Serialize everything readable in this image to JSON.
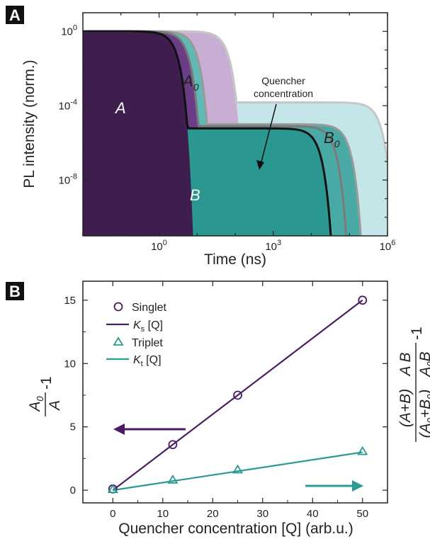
{
  "colors": {
    "singlet": "#4a1d63",
    "triplet": "#2a9a93",
    "a_fill": "#3e1d4f",
    "b_fill": "#2b9791",
    "a0_fill": "#c9aed3",
    "b0_fill": "#c5e6e9",
    "grey_curve": "#c7c7c7",
    "mid_grey": "#7a7a7a"
  },
  "panel_a": {
    "badge": "A",
    "xlabel": "Time (ns)",
    "ylabel": "PL intensity (norm.)",
    "label_A": "A",
    "label_A0_base": "A",
    "label_A0_sub": "0",
    "label_B": "B",
    "label_B0_base": "B",
    "label_B0_sub": "0",
    "annotation_line1": "Quencher",
    "annotation_line2": "concentration"
  },
  "panel_b": {
    "badge": "B",
    "xlabel": "Quencher concentration [Q] (arb.u.)",
    "left_ylabel_base": "A",
    "left_ylabel_sub": "0",
    "left_ylabel_den": "A",
    "left_ylabel_tail": "-1",
    "right_ylabel_top": "(A+B)",
    "right_ylabel_topright": "A B",
    "right_ylabel_bottom_left": "(A",
    "right_ylabel_bottom_right": "B",
    "right_ylabel_tail": "-1",
    "legend": {
      "singlet": "Singlet",
      "ks": "K",
      "ks_sub": "s",
      "ks_tail": " [Q]",
      "triplet": "Triplet",
      "kt": "K",
      "kt_sub": "t",
      "kt_tail": " [Q]"
    }
  },
  "chart_data": [
    {
      "type": "area",
      "panel": "A",
      "xlabel": "Time (ns)",
      "ylabel": "PL intensity (norm.)",
      "xscale": "log",
      "yscale": "log",
      "x_tick_labels": [
        "10^0",
        "10^3",
        "10^6"
      ],
      "y_tick_labels": [
        "10^0",
        "10^-4",
        "10^-8"
      ],
      "xlim": [
        0.01,
        1000000
      ],
      "ylim": [
        1e-11,
        10
      ],
      "series": [
        {
          "name": "A",
          "level": 1,
          "t_end": 1.8,
          "plateau": 6e-06,
          "t_end2": 10000
        },
        {
          "name": "",
          "level": 1,
          "t_end": 3.5,
          "plateau": 8e-06,
          "t_end2": 25000
        },
        {
          "name": "",
          "level": 1,
          "t_end": 6,
          "plateau": 1e-05,
          "t_end2": 60000
        },
        {
          "name": "A0",
          "level": 1,
          "t_end": 40,
          "plateau": 0.00015,
          "t_end2": 400000
        }
      ]
    },
    {
      "type": "scatter",
      "panel": "B",
      "xlabel": "Quencher concentration [Q] (arb.u.)",
      "xlim": [
        -6,
        55
      ],
      "ylim": [
        -1,
        16.5
      ],
      "x_ticks": [
        0,
        10,
        20,
        30,
        40,
        50
      ],
      "y_ticks": [
        0,
        5,
        10,
        15
      ],
      "series": [
        {
          "name": "Singlet",
          "x": [
            0,
            12,
            25,
            50
          ],
          "y": [
            0.1,
            3.6,
            7.5,
            15
          ]
        },
        {
          "name": "Triplet",
          "x": [
            0,
            12,
            25,
            50
          ],
          "y": [
            0.05,
            0.8,
            1.6,
            3.05
          ]
        }
      ],
      "fits": [
        {
          "name": "Ks [Q]",
          "slope": 0.3
        },
        {
          "name": "Kt [Q]",
          "slope": 0.06
        }
      ]
    }
  ]
}
